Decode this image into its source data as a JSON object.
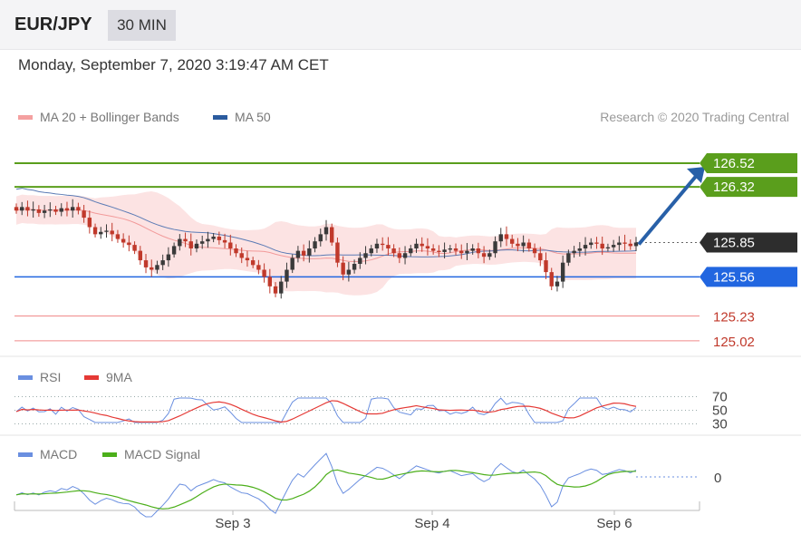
{
  "header": {
    "pair": "EUR/JPY",
    "timeframe": "30 MIN"
  },
  "timestamp": "Monday, September 7, 2020 3:19:47 AM CET",
  "legend": {
    "ma_bb": "MA 20 + Bollinger Bands",
    "ma50": "MA 50",
    "credit": "Research © 2020 Trading Central",
    "rsi": "RSI",
    "rsi_ma": "9MA",
    "macd": "MACD",
    "macd_signal": "MACD Signal"
  },
  "colors": {
    "up": "#3a3a3a",
    "down": "#c0392b",
    "bb_fill": "#fbdcdc",
    "ma20": "#f29a9a",
    "ma50": "#5b7bb5",
    "resistance": "#5a9e1c",
    "support": "#2166e0",
    "support_thin": "#f08a8a",
    "current": "#2d2d2d",
    "rsi": "#6a8fe0",
    "rsi_ma": "#e53935",
    "macd": "#6a8fe0",
    "macd_signal": "#4caf1a",
    "arrow": "#2860a8"
  },
  "chart_data": [
    {
      "type": "candlestick",
      "title": "EUR/JPY",
      "x_ticks": [
        "Sep 3",
        "Sep 4",
        "Sep 6"
      ],
      "ylim": [
        124.95,
        126.75
      ],
      "series": [
        {
          "name": "EUR/JPY",
          "values": [
            126.12,
            126.15,
            126.12,
            126.13,
            126.1,
            126.12,
            126.13,
            126.11,
            126.14,
            126.12,
            126.15,
            126.12,
            126.06,
            125.98,
            125.92,
            125.94,
            125.95,
            125.92,
            125.88,
            125.85,
            125.83,
            125.78,
            125.7,
            125.64,
            125.62,
            125.66,
            125.7,
            125.75,
            125.82,
            125.88,
            125.86,
            125.8,
            125.84,
            125.86,
            125.88,
            125.9,
            125.87,
            125.85,
            125.8,
            125.76,
            125.72,
            125.7,
            125.66,
            125.62,
            125.56,
            125.48,
            125.42,
            125.52,
            125.62,
            125.72,
            125.78,
            125.74,
            125.8,
            125.86,
            125.92,
            125.98,
            125.85,
            125.68,
            125.58,
            125.62,
            125.67,
            125.72,
            125.76,
            125.8,
            125.84,
            125.83,
            125.8,
            125.76,
            125.72,
            125.76,
            125.8,
            125.84,
            125.82,
            125.8,
            125.78,
            125.77,
            125.79,
            125.8,
            125.78,
            125.76,
            125.78,
            125.8,
            125.76,
            125.73,
            125.76,
            125.86,
            125.92,
            125.88,
            125.84,
            125.82,
            125.85,
            125.8,
            125.76,
            125.7,
            125.6,
            125.48,
            125.52,
            125.68,
            125.76,
            125.78,
            125.8,
            125.83,
            125.85,
            125.84,
            125.8,
            125.81,
            125.83,
            125.85,
            125.84,
            125.82,
            125.85
          ]
        },
        {
          "name": "MA 20",
          "values": []
        },
        {
          "name": "MA 50",
          "values": []
        }
      ],
      "levels": {
        "resistance": [
          126.52,
          126.32
        ],
        "support": [
          125.56,
          125.23,
          125.02
        ],
        "current": 125.85
      },
      "level_labels": [
        "126.52",
        "126.32",
        "125.85",
        "125.56",
        "125.23",
        "125.02"
      ],
      "forecast_target": 126.52
    },
    {
      "type": "line",
      "title": "RSI",
      "y_ticks": [
        "70",
        "50",
        "30"
      ],
      "ylim": [
        20,
        80
      ],
      "series": [
        {
          "name": "RSI",
          "values": []
        },
        {
          "name": "9MA",
          "values": []
        }
      ]
    },
    {
      "type": "line",
      "title": "MACD",
      "y_ticks": [
        "0"
      ],
      "series": [
        {
          "name": "MACD",
          "values": []
        },
        {
          "name": "MACD Signal",
          "values": []
        }
      ]
    }
  ]
}
